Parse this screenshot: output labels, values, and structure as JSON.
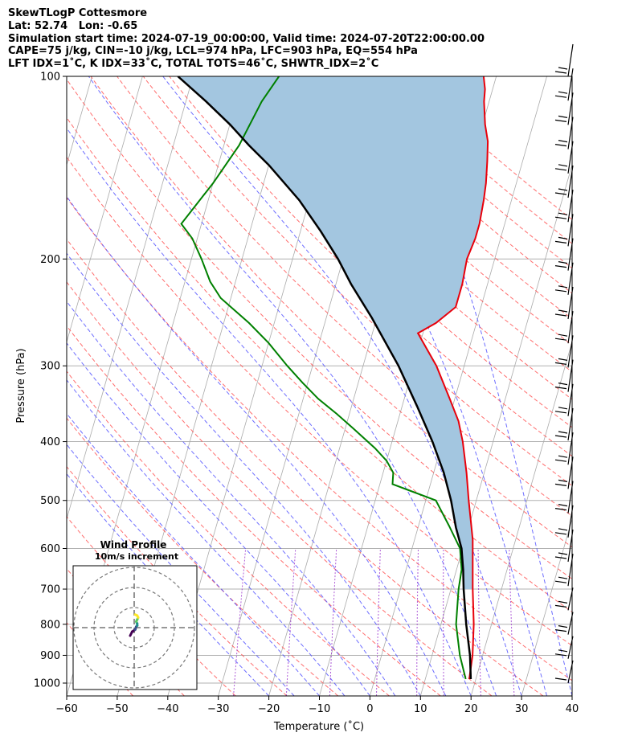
{
  "header": {
    "line1": "SkewTLogP Cottesmore",
    "line2": "Lat: 52.74   Lon: -0.65",
    "line3": "Simulation start time: 2024-07-19_00:00:00, Valid time: 2024-07-20T22:00:00.00",
    "line4": "CAPE=75 j/kg, CIN=-10 j/kg, LCL=974 hPa, LFC=903 hPa, EQ=554 hPa",
    "line5": "LFT IDX=1˚C, K IDX=33˚C, TOTAL TOTS=46˚C, SHWTR_IDX=2˚C"
  },
  "chart_data": {
    "type": "line",
    "subtype": "skew-t log-p",
    "xlabel": "Temperature (˚C)",
    "ylabel": "Pressure (hPa)",
    "xlim": [
      -60,
      40
    ],
    "ylim": [
      1050,
      100
    ],
    "y_scale": "log",
    "x_ticks": [
      "−60",
      "−50",
      "−40",
      "−30",
      "−20",
      "−10",
      "0",
      "10",
      "20",
      "30",
      "40"
    ],
    "y_ticks": [
      100,
      200,
      300,
      400,
      500,
      600,
      700,
      800,
      900,
      1000
    ],
    "grid": true,
    "colors": {
      "temperature": "#e8000b",
      "dewpoint": "#008000",
      "parcel": "#000000",
      "cape_fill": "#a3c6e0",
      "isotherm": "#aaaaaa",
      "dry_adiabat": "#ff5555",
      "moist_adiabat": "#5555ff",
      "mixing_ratio": "#9a32cd",
      "wind_barb": "#000000"
    },
    "series": [
      {
        "role": "temperature",
        "points": [
          [
            18.7,
            985
          ],
          [
            18.0,
            900
          ],
          [
            16.5,
            800
          ],
          [
            14.3,
            700
          ],
          [
            12.5,
            620
          ],
          [
            11.5,
            580
          ],
          [
            8.5,
            500
          ],
          [
            6.5,
            450
          ],
          [
            4.0,
            400
          ],
          [
            2.0,
            370
          ],
          [
            -1.0,
            340
          ],
          [
            -5.5,
            300
          ],
          [
            -11.0,
            265
          ],
          [
            -8.0,
            255
          ],
          [
            -5.0,
            240
          ],
          [
            -5.0,
            220
          ],
          [
            -5.5,
            200
          ],
          [
            -5.0,
            185
          ],
          [
            -5.0,
            175
          ],
          [
            -5.5,
            160
          ],
          [
            -6.0,
            150
          ],
          [
            -7.0,
            138
          ],
          [
            -8.0,
            128
          ],
          [
            -9.5,
            120
          ],
          [
            -11.0,
            110
          ],
          [
            -11.5,
            105
          ],
          [
            -12.5,
            100
          ]
        ]
      },
      {
        "role": "dewpoint",
        "points": [
          [
            18.0,
            985
          ],
          [
            15.5,
            900
          ],
          [
            13.0,
            800
          ],
          [
            11.5,
            700
          ],
          [
            11.0,
            650
          ],
          [
            9.5,
            600
          ],
          [
            6.0,
            550
          ],
          [
            2.0,
            500
          ],
          [
            -7.5,
            470
          ],
          [
            -8.0,
            450
          ],
          [
            -10.0,
            430
          ],
          [
            -13.0,
            410
          ],
          [
            -18.5,
            380
          ],
          [
            -22.5,
            360
          ],
          [
            -27.0,
            340
          ],
          [
            -31.0,
            320
          ],
          [
            -35.0,
            300
          ],
          [
            -40.0,
            275
          ],
          [
            -45.0,
            255
          ],
          [
            -52.0,
            232
          ],
          [
            -55.0,
            218
          ],
          [
            -58.0,
            200
          ],
          [
            -61.0,
            185
          ],
          [
            -64.0,
            175
          ],
          [
            -60.0,
            150
          ],
          [
            -57.0,
            130
          ],
          [
            -55.0,
            110
          ],
          [
            -53.0,
            100
          ]
        ]
      },
      {
        "role": "parcel",
        "points": [
          [
            19.0,
            985
          ],
          [
            17.5,
            900
          ],
          [
            15.0,
            800
          ],
          [
            12.5,
            700
          ],
          [
            11.3,
            650
          ],
          [
            9.8,
            600
          ],
          [
            7.5,
            554
          ],
          [
            5.0,
            500
          ],
          [
            2.0,
            450
          ],
          [
            -2.0,
            400
          ],
          [
            -7.0,
            350
          ],
          [
            -13.0,
            300
          ],
          [
            -21.0,
            250
          ],
          [
            -27.0,
            220
          ],
          [
            -31.0,
            200
          ],
          [
            -36.0,
            180
          ],
          [
            -42.0,
            160
          ],
          [
            -50.0,
            140
          ],
          [
            -55.0,
            130
          ],
          [
            -60.0,
            120
          ],
          [
            -66.0,
            110
          ],
          [
            -73.0,
            100
          ]
        ]
      }
    ],
    "wind_barbs_count": 26,
    "inset": {
      "title": "Wind Profile",
      "subtitle": "10m/s increment",
      "hodograph_points_ms": [
        [
          -2.0,
          -4.0
        ],
        [
          -1.0,
          -2.0
        ],
        [
          0.5,
          -1.0
        ],
        [
          1.0,
          0.5
        ],
        [
          1.5,
          1.0
        ],
        [
          1.5,
          2.0
        ],
        [
          1.0,
          3.0
        ],
        [
          1.5,
          4.0
        ],
        [
          2.0,
          5.0
        ],
        [
          1.5,
          6.0
        ],
        [
          0.5,
          6.5
        ]
      ]
    }
  }
}
